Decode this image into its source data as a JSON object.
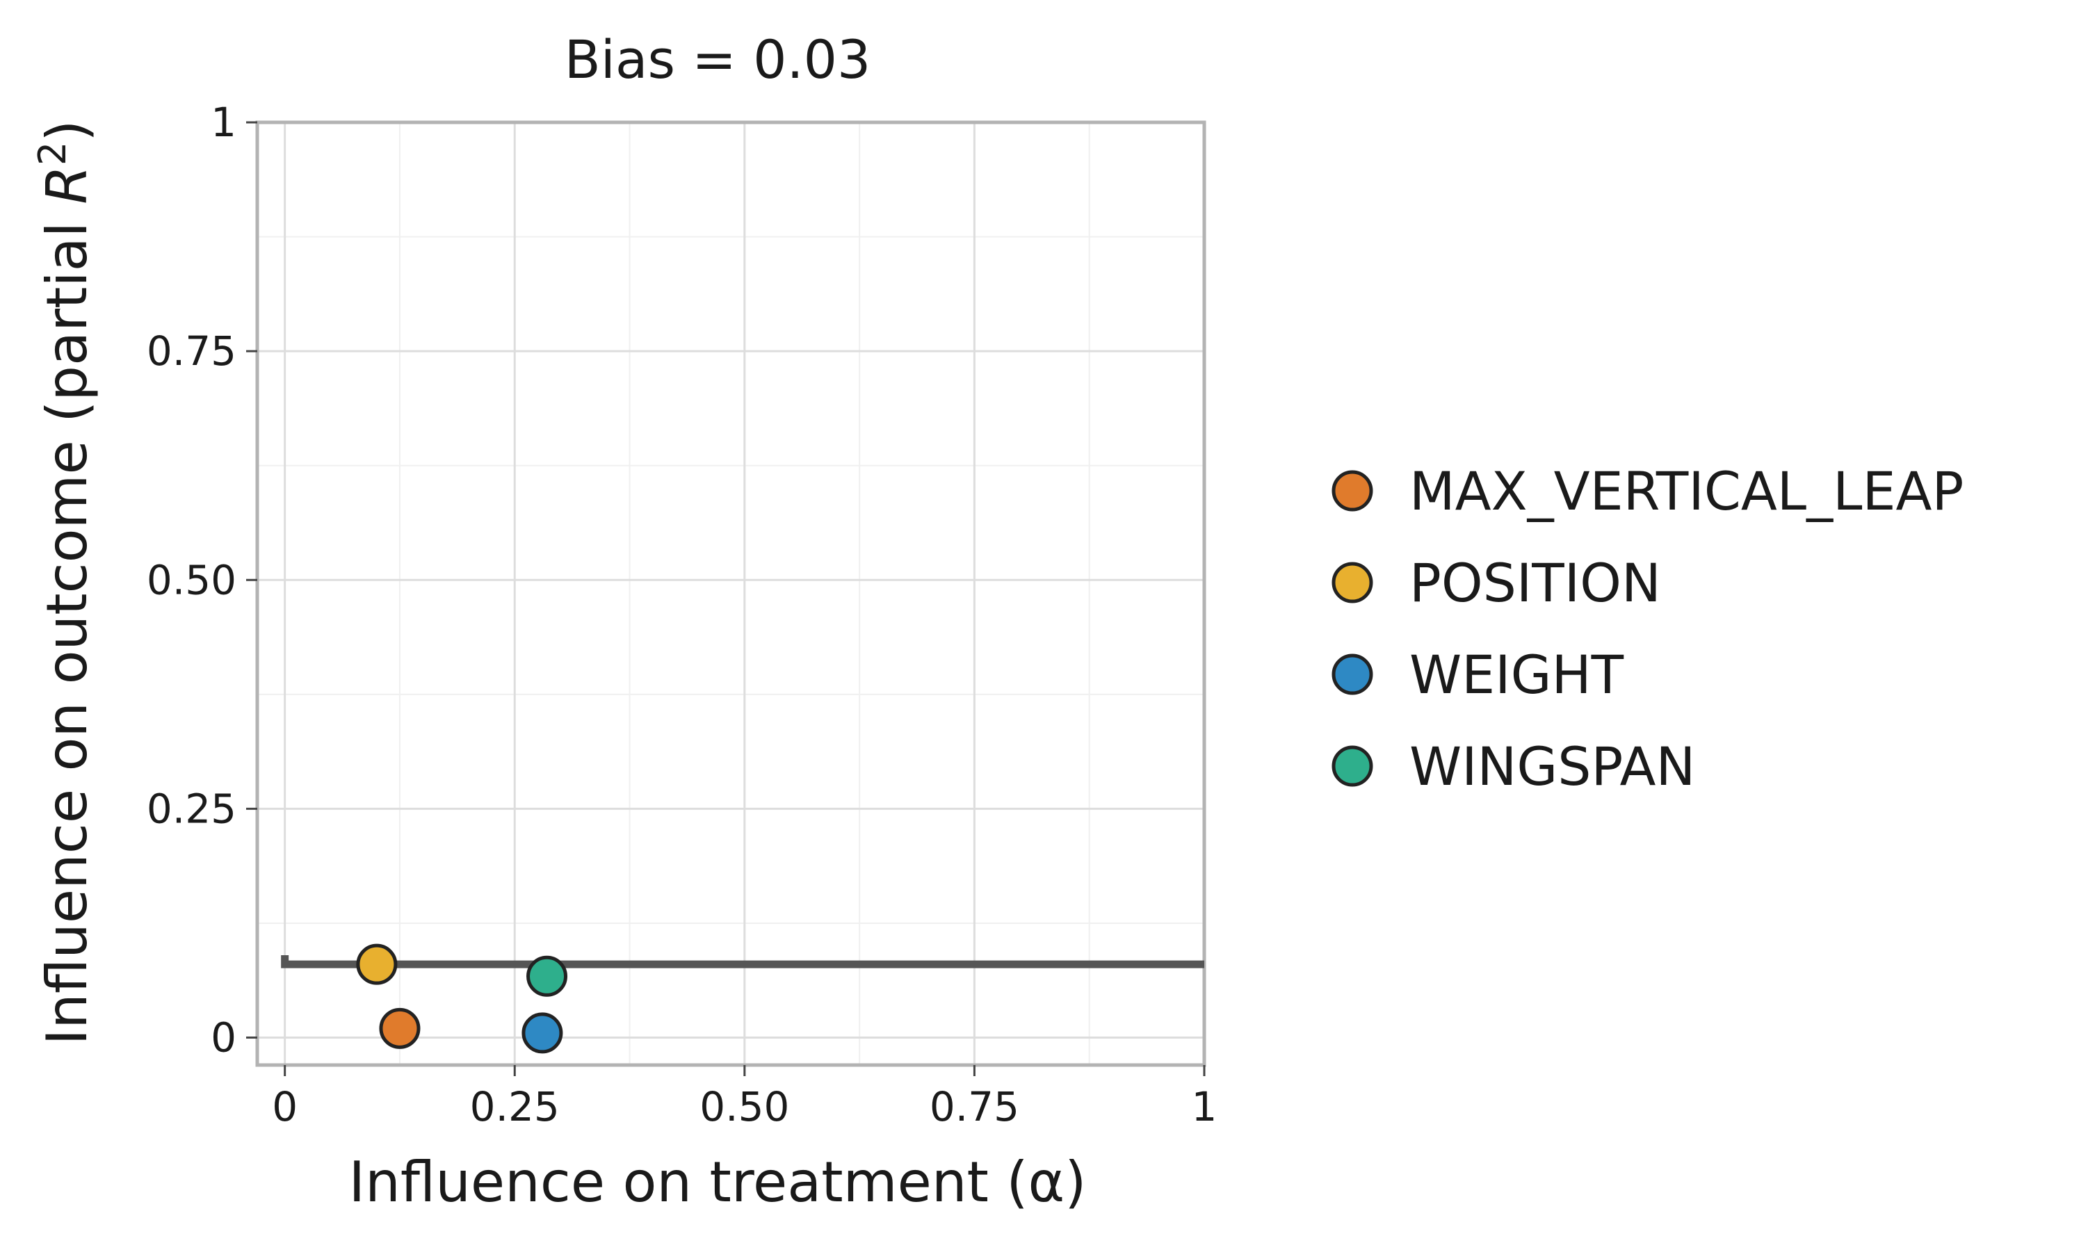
{
  "chart_data": {
    "type": "scatter",
    "title": "Bias = 0.03",
    "xlabel": "Influence on treatment (α)",
    "ylabel_prefix": "Influence on outcome (partial ",
    "ylabel_var": "R",
    "ylabel_sup": "2",
    "ylabel_suffix": ")",
    "xlim": [
      -0.03,
      1
    ],
    "ylim": [
      -0.03,
      1
    ],
    "x_ticks": [
      0,
      0.25,
      0.5,
      0.75,
      1
    ],
    "x_tick_labels": [
      "0",
      "0.25",
      "0.50",
      "0.75",
      "1"
    ],
    "y_ticks": [
      0,
      0.25,
      0.5,
      0.75,
      1
    ],
    "y_tick_labels": [
      "0",
      "0.25",
      "0.50",
      "0.75",
      "1"
    ],
    "grid": true,
    "legend_position": "right",
    "contour": {
      "label": "Bias = 0.03",
      "color": "#555555",
      "points": [
        [
          0,
          0.09
        ],
        [
          0,
          0.08
        ],
        [
          1,
          0.08
        ]
      ]
    },
    "series": [
      {
        "name": "MAX_VERTICAL_LEAP",
        "color": "#E07B2C",
        "points": [
          [
            0.125,
            0.01
          ]
        ]
      },
      {
        "name": "POSITION",
        "color": "#E8B02F",
        "points": [
          [
            0.1,
            0.08
          ]
        ]
      },
      {
        "name": "WEIGHT",
        "color": "#2E89C4",
        "points": [
          [
            0.28,
            0.005
          ]
        ]
      },
      {
        "name": "WINGSPAN",
        "color": "#2EAF8C",
        "points": [
          [
            0.285,
            0.067
          ]
        ]
      }
    ]
  }
}
